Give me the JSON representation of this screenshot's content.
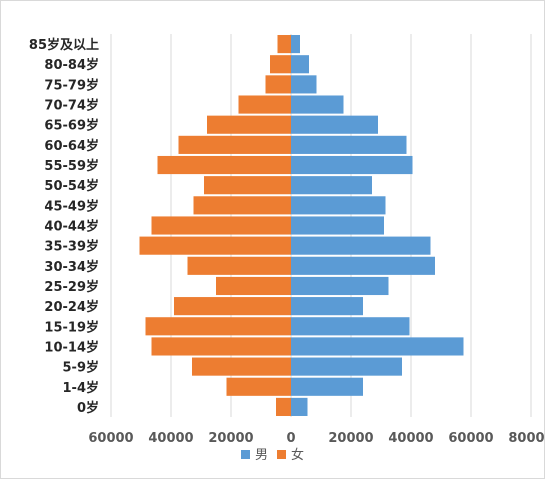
{
  "chart_data": {
    "type": "bar",
    "orientation": "horizontal",
    "subtype": "population-pyramid",
    "categories": [
      "85岁及以上",
      "80-84岁",
      "75-79岁",
      "70-74岁",
      "65-69岁",
      "60-64岁",
      "55-59岁",
      "50-54岁",
      "45-49岁",
      "40-44岁",
      "35-39岁",
      "30-34岁",
      "25-29岁",
      "20-24岁",
      "15-19岁",
      "10-14岁",
      "5-9岁",
      "1-4岁",
      "0岁"
    ],
    "series": [
      {
        "name": "男",
        "color": "#5b9bd5",
        "side": "right",
        "values": [
          3000,
          6000,
          8500,
          17500,
          29000,
          38500,
          40500,
          27000,
          31500,
          31000,
          46500,
          48000,
          32500,
          24000,
          39500,
          57500,
          37000,
          24000,
          5500
        ]
      },
      {
        "name": "女",
        "color": "#ed7d31",
        "side": "left",
        "values": [
          4500,
          7000,
          8500,
          17500,
          28000,
          37500,
          44500,
          29000,
          32500,
          46500,
          50500,
          34500,
          25000,
          39000,
          48500,
          46500,
          33000,
          21500,
          5000
        ]
      }
    ],
    "x_ticks": [
      "60000",
      "40000",
      "20000",
      "0",
      "20000",
      "40000",
      "60000",
      "80000"
    ],
    "xlim": [
      -60000,
      80000
    ],
    "grid": true,
    "legend_position": "bottom"
  }
}
